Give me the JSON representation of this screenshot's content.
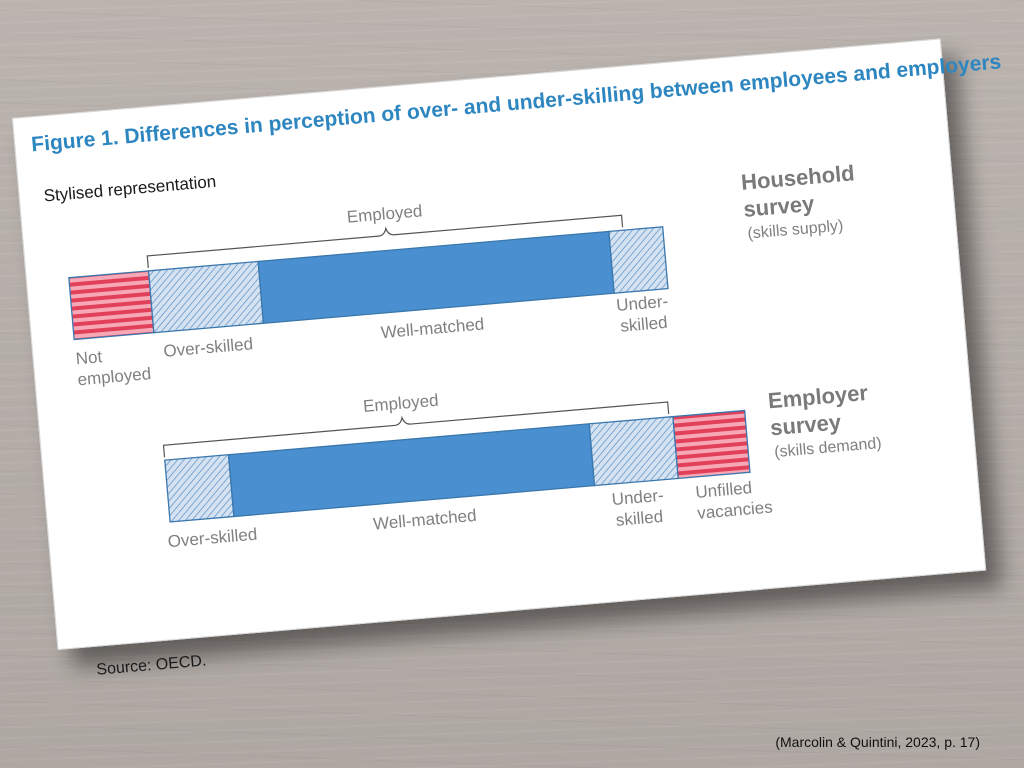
{
  "figure": {
    "title": "Figure 1. Differences in perception of over- and under-skilling between employees and employers",
    "subtitle": "Stylised representation",
    "source": "Source: OECD."
  },
  "household": {
    "title_line1": "Household",
    "title_line2": "survey",
    "subtitle": "(skills supply)",
    "brace_label": "Employed",
    "segments": {
      "not_employed_line1": "Not",
      "not_employed_line2": "employed",
      "over_skilled": "Over-skilled",
      "well_matched": "Well-matched",
      "under_line1": "Under-",
      "under_line2": "skilled"
    }
  },
  "employer": {
    "title_line1": "Employer",
    "title_line2": "survey",
    "subtitle": "(skills demand)",
    "brace_label": "Employed",
    "segments": {
      "over_skilled": "Over-skilled",
      "well_matched": "Well-matched",
      "under_line1": "Under-",
      "under_line2": "skilled",
      "unfilled_line1": "Unfilled",
      "unfilled_line2": "vacancies"
    }
  },
  "colors": {
    "well_matched": "#4a90d0",
    "stripes": "#e0405a",
    "hatch": "#5b8fc4",
    "title": "#2e86c1"
  },
  "citation": "(Marcolin & Quintini, 2023, p. 17)"
}
